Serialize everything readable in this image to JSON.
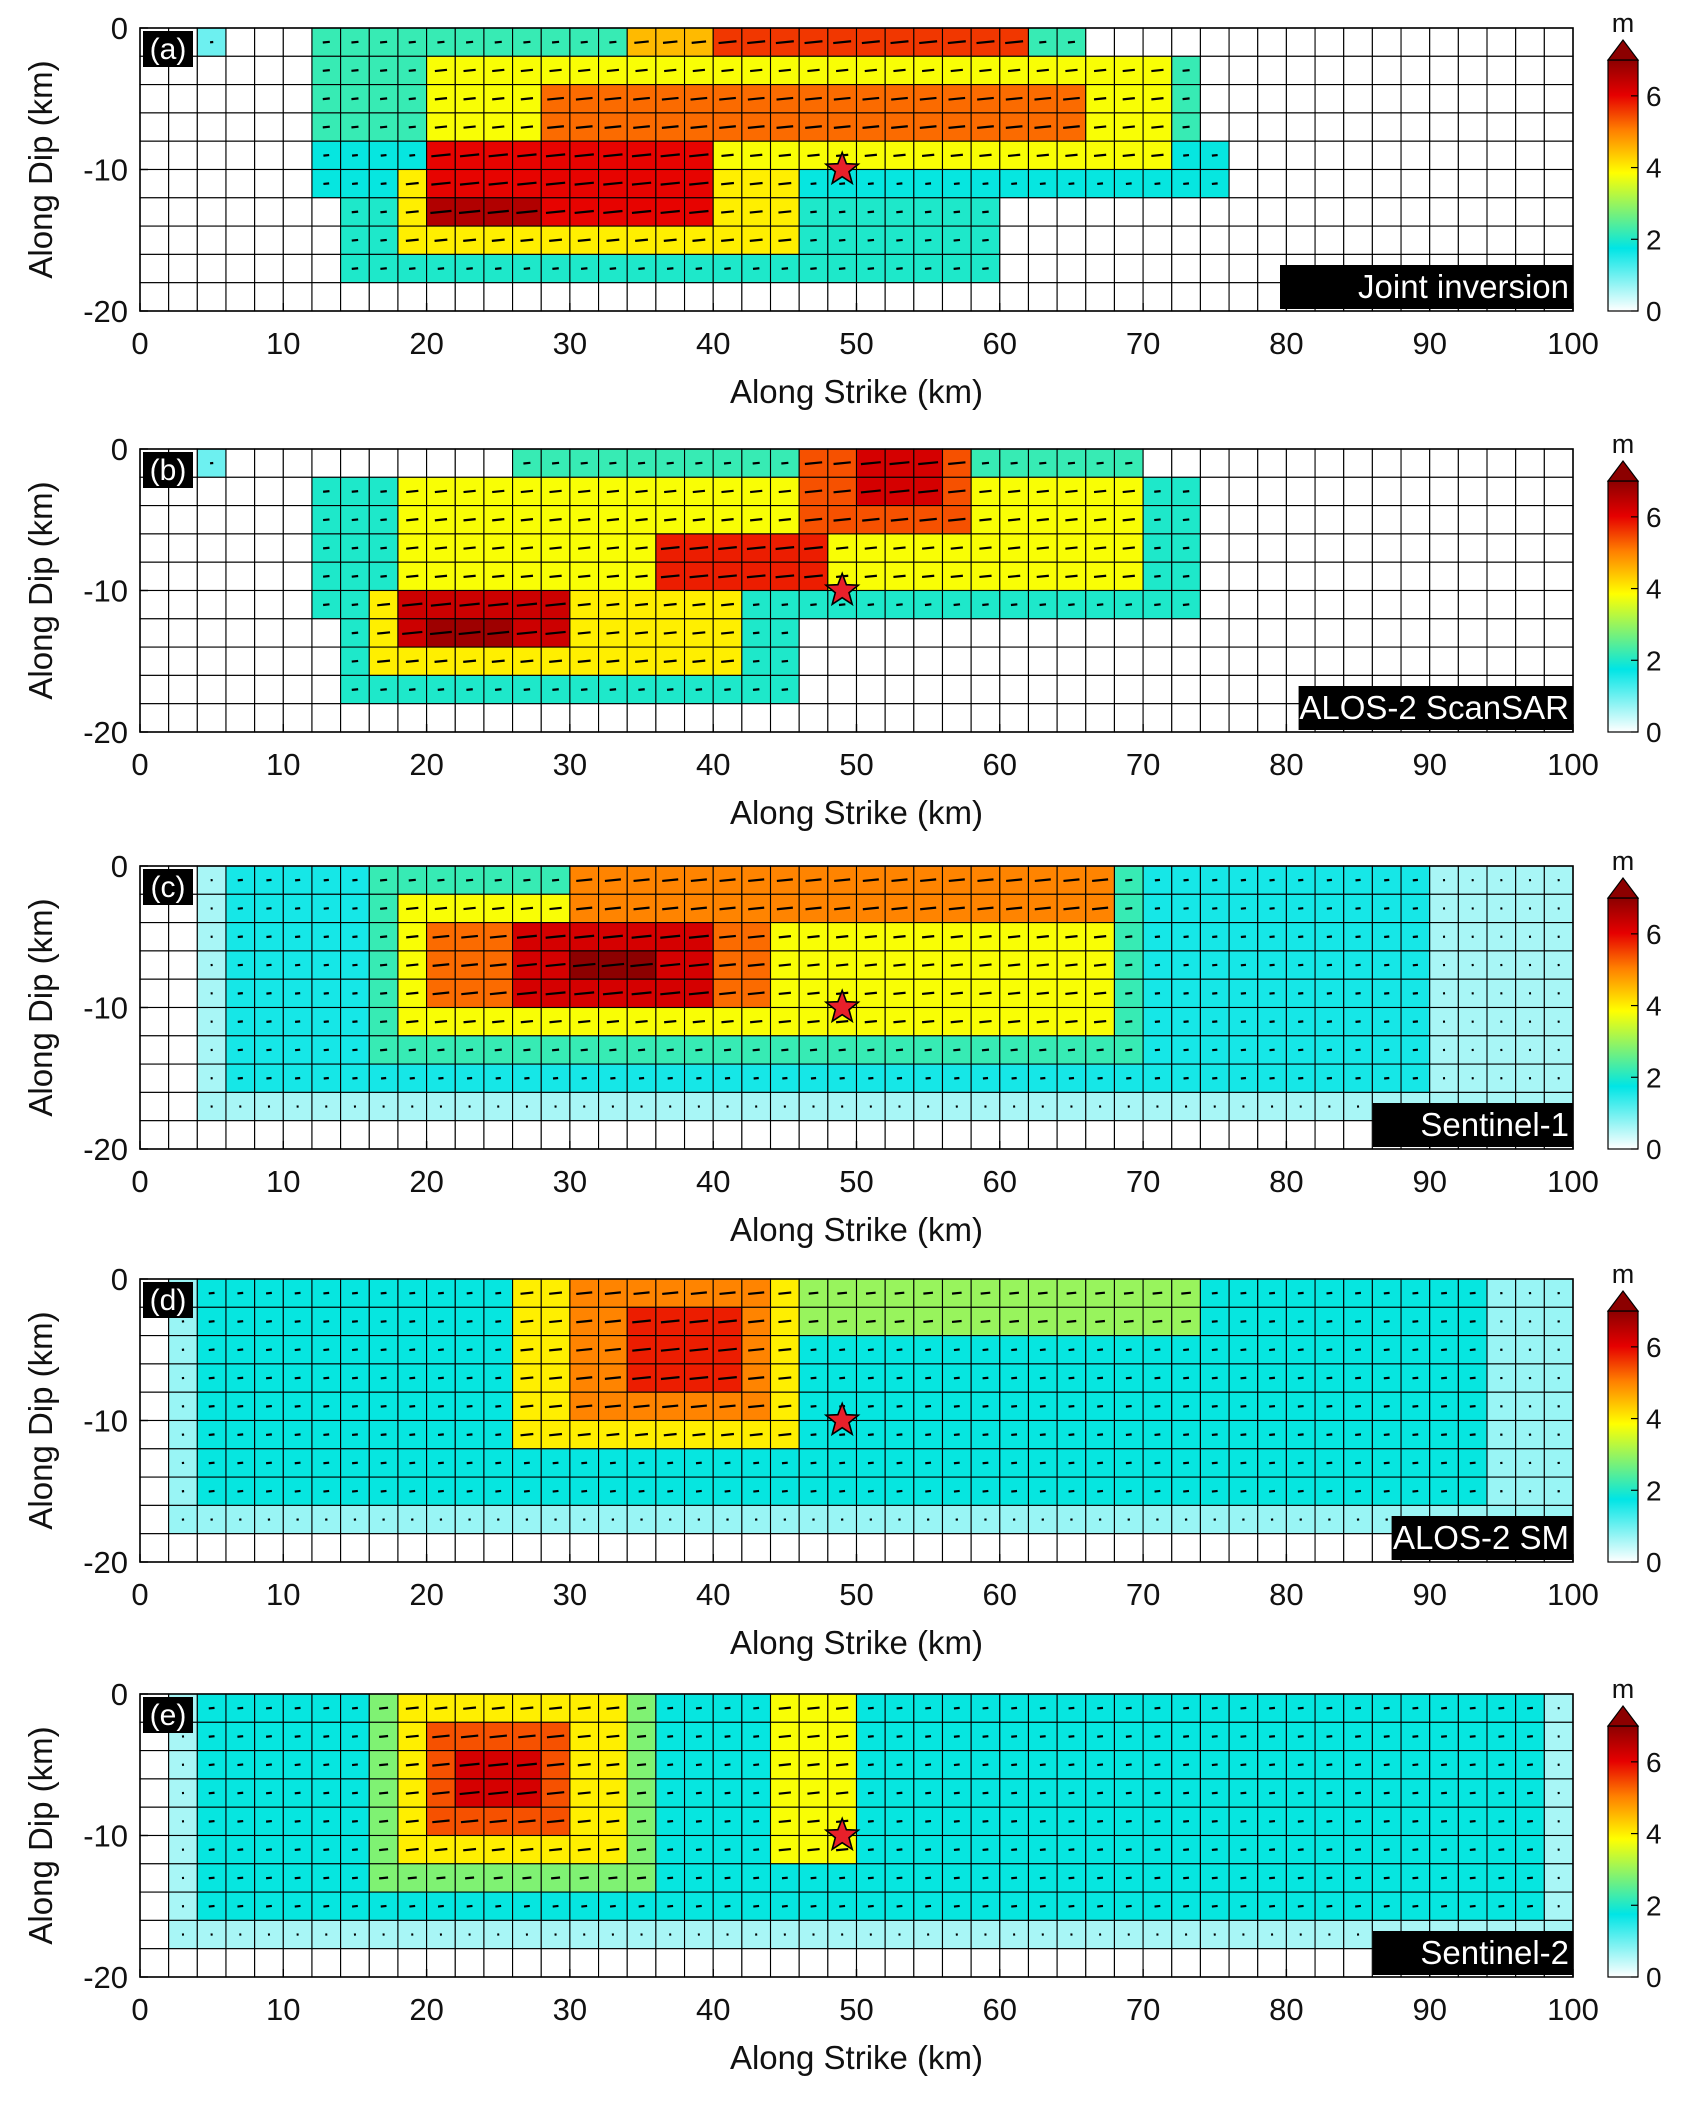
{
  "figure": {
    "colorbar": {
      "unit": "m",
      "ticks": [
        0,
        2,
        4,
        6
      ],
      "range": [
        0,
        7
      ],
      "colormap": [
        "#ffffff",
        "#00e5e5",
        "#ffff00",
        "#ff8000",
        "#e60000",
        "#8c0000"
      ]
    },
    "hypocenter_color": "#e8202a"
  },
  "chart_data": [
    {
      "type": "heatmap",
      "panel_label": "(a)",
      "title": "Joint inversion",
      "xlabel": "Along Strike (km)",
      "ylabel": "Along Dip (km)",
      "xlim": [
        0,
        100
      ],
      "ylim": [
        -20,
        0
      ],
      "xticks": [
        0,
        10,
        20,
        30,
        40,
        50,
        60,
        70,
        80,
        90,
        100
      ],
      "yticks": [
        0,
        -10,
        -20
      ],
      "hypocenter": {
        "x": 49,
        "y": -10
      },
      "patch_size_km": [
        2,
        2
      ],
      "slip_patches_m": [
        {
          "x": [
            5,
            6
          ],
          "y": [
            0,
            -2
          ],
          "slip": 1.0
        },
        {
          "x": [
            12,
            76
          ],
          "y": [
            -8,
            -12
          ],
          "slip": 1.8
        },
        {
          "x": [
            12,
            74
          ],
          "y": [
            -2,
            -8
          ],
          "slip": 2.2
        },
        {
          "x": [
            14,
            60
          ],
          "y": [
            -12,
            -18
          ],
          "slip": 2.0
        },
        {
          "x": [
            12,
            66
          ],
          "y": [
            0,
            -2
          ],
          "slip": 2.2
        },
        {
          "x": [
            20,
            72
          ],
          "y": [
            -2,
            -10
          ],
          "slip": 3.8
        },
        {
          "x": [
            18,
            46
          ],
          "y": [
            -10,
            -16
          ],
          "slip": 4.0
        },
        {
          "x": [
            34,
            60
          ],
          "y": [
            0,
            -2
          ],
          "slip": 4.5
        },
        {
          "x": [
            28,
            66
          ],
          "y": [
            -4,
            -8
          ],
          "slip": 5.2
        },
        {
          "x": [
            40,
            62
          ],
          "y": [
            0,
            -2
          ],
          "slip": 5.6
        },
        {
          "x": [
            20,
            40
          ],
          "y": [
            -8,
            -14
          ],
          "slip": 6.0
        },
        {
          "x": [
            20,
            28
          ],
          "y": [
            -12,
            -14
          ],
          "slip": 6.6
        }
      ]
    },
    {
      "type": "heatmap",
      "panel_label": "(b)",
      "title": "ALOS-2 ScanSAR",
      "xlabel": "Along Strike (km)",
      "ylabel": "Along Dip (km)",
      "xlim": [
        0,
        100
      ],
      "ylim": [
        -20,
        0
      ],
      "xticks": [
        0,
        10,
        20,
        30,
        40,
        50,
        60,
        70,
        80,
        90,
        100
      ],
      "yticks": [
        0,
        -10,
        -20
      ],
      "hypocenter": {
        "x": 49,
        "y": -10
      },
      "patch_size_km": [
        2,
        2
      ],
      "slip_patches_m": [
        {
          "x": [
            5,
            6
          ],
          "y": [
            0,
            -2
          ],
          "slip": 1.0
        },
        {
          "x": [
            12,
            74
          ],
          "y": [
            -2,
            -12
          ],
          "slip": 2.0
        },
        {
          "x": [
            14,
            46
          ],
          "y": [
            -12,
            -18
          ],
          "slip": 2.0
        },
        {
          "x": [
            26,
            70
          ],
          "y": [
            0,
            -2
          ],
          "slip": 2.2
        },
        {
          "x": [
            18,
            70
          ],
          "y": [
            -2,
            -10
          ],
          "slip": 3.8
        },
        {
          "x": [
            16,
            42
          ],
          "y": [
            -10,
            -16
          ],
          "slip": 4.0
        },
        {
          "x": [
            46,
            58
          ],
          "y": [
            0,
            -6
          ],
          "slip": 5.4
        },
        {
          "x": [
            36,
            48
          ],
          "y": [
            -6,
            -10
          ],
          "slip": 5.8
        },
        {
          "x": [
            18,
            30
          ],
          "y": [
            -10,
            -14
          ],
          "slip": 6.3
        },
        {
          "x": [
            50,
            56
          ],
          "y": [
            0,
            -4
          ],
          "slip": 6.2
        },
        {
          "x": [
            20,
            26
          ],
          "y": [
            -12,
            -14
          ],
          "slip": 6.8
        }
      ]
    },
    {
      "type": "heatmap",
      "panel_label": "(c)",
      "title": "Sentinel-1",
      "xlabel": "Along Strike (km)",
      "ylabel": "Along Dip (km)",
      "xlim": [
        0,
        100
      ],
      "ylim": [
        -20,
        0
      ],
      "xticks": [
        0,
        10,
        20,
        30,
        40,
        50,
        60,
        70,
        80,
        90,
        100
      ],
      "yticks": [
        0,
        -10,
        -20
      ],
      "hypocenter": {
        "x": 49,
        "y": -10
      },
      "patch_size_km": [
        2,
        2
      ],
      "slip_patches_m": [
        {
          "x": [
            4,
            100
          ],
          "y": [
            0,
            -18
          ],
          "slip": 0.6
        },
        {
          "x": [
            6,
            90
          ],
          "y": [
            0,
            -16
          ],
          "slip": 1.6
        },
        {
          "x": [
            16,
            70
          ],
          "y": [
            0,
            -14
          ],
          "slip": 2.2
        },
        {
          "x": [
            18,
            68
          ],
          "y": [
            -2,
            -12
          ],
          "slip": 3.8
        },
        {
          "x": [
            30,
            68
          ],
          "y": [
            0,
            -4
          ],
          "slip": 5.0
        },
        {
          "x": [
            20,
            44
          ],
          "y": [
            -4,
            -10
          ],
          "slip": 5.2
        },
        {
          "x": [
            26,
            40
          ],
          "y": [
            -4,
            -10
          ],
          "slip": 6.2
        },
        {
          "x": [
            30,
            36
          ],
          "y": [
            -6,
            -8
          ],
          "slip": 7.0
        }
      ]
    },
    {
      "type": "heatmap",
      "panel_label": "(d)",
      "title": "ALOS-2 SM",
      "xlabel": "Along Strike (km)",
      "ylabel": "Along Dip (km)",
      "xlim": [
        0,
        100
      ],
      "ylim": [
        -20,
        0
      ],
      "xticks": [
        0,
        10,
        20,
        30,
        40,
        50,
        60,
        70,
        80,
        90,
        100
      ],
      "yticks": [
        0,
        -10,
        -20
      ],
      "hypocenter": {
        "x": 49,
        "y": -10
      },
      "patch_size_km": [
        2,
        2
      ],
      "slip_patches_m": [
        {
          "x": [
            2,
            100
          ],
          "y": [
            0,
            -18
          ],
          "slip": 0.7
        },
        {
          "x": [
            4,
            94
          ],
          "y": [
            0,
            -16
          ],
          "slip": 1.8
        },
        {
          "x": [
            26,
            74
          ],
          "y": [
            0,
            -4
          ],
          "slip": 3.0
        },
        {
          "x": [
            26,
            46
          ],
          "y": [
            0,
            -12
          ],
          "slip": 4.0
        },
        {
          "x": [
            30,
            44
          ],
          "y": [
            0,
            -10
          ],
          "slip": 5.0
        },
        {
          "x": [
            34,
            42
          ],
          "y": [
            -2,
            -8
          ],
          "slip": 5.8
        }
      ]
    },
    {
      "type": "heatmap",
      "panel_label": "(e)",
      "title": "Sentinel-2",
      "xlabel": "Along Strike (km)",
      "ylabel": "Along Dip (km)",
      "xlim": [
        0,
        100
      ],
      "ylim": [
        -20,
        0
      ],
      "xticks": [
        0,
        10,
        20,
        30,
        40,
        50,
        60,
        70,
        80,
        90,
        100
      ],
      "yticks": [
        0,
        -10,
        -20
      ],
      "hypocenter": {
        "x": 49,
        "y": -10
      },
      "patch_size_km": [
        2,
        2
      ],
      "slip_patches_m": [
        {
          "x": [
            2,
            100
          ],
          "y": [
            0,
            -18
          ],
          "slip": 0.6
        },
        {
          "x": [
            4,
            98
          ],
          "y": [
            0,
            -16
          ],
          "slip": 1.8
        },
        {
          "x": [
            16,
            36
          ],
          "y": [
            0,
            -14
          ],
          "slip": 2.8
        },
        {
          "x": [
            18,
            34
          ],
          "y": [
            0,
            -12
          ],
          "slip": 4.0
        },
        {
          "x": [
            44,
            50
          ],
          "y": [
            0,
            -12
          ],
          "slip": 3.8
        },
        {
          "x": [
            20,
            30
          ],
          "y": [
            -2,
            -10
          ],
          "slip": 5.4
        },
        {
          "x": [
            22,
            28
          ],
          "y": [
            -4,
            -8
          ],
          "slip": 6.2
        }
      ]
    }
  ]
}
